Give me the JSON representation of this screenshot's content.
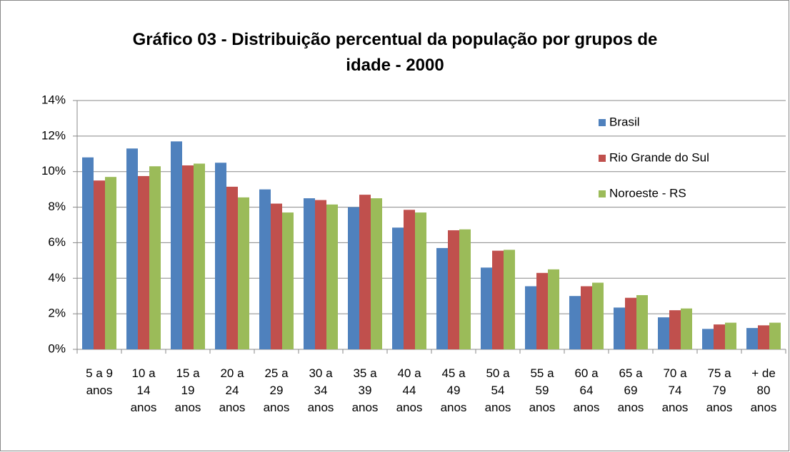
{
  "chart_data": {
    "type": "bar",
    "title": "Gráfico 03 - Distribuição percentual da população por grupos de idade - 2000",
    "categories": [
      "5 a 9 anos",
      "10 a 14 anos",
      "15 a 19 anos",
      "20 a 24 anos",
      "25 a 29 anos",
      "30 a 34 anos",
      "35 a 39 anos",
      "40 a 44 anos",
      "45 a 49 anos",
      "50 a 54 anos",
      "55 a 59 anos",
      "60 a 64 anos",
      "65 a 69 anos",
      "70 a 74 anos",
      "75 a 79 anos",
      "+ de 80 anos"
    ],
    "series": [
      {
        "name": "Brasil",
        "color": "#4f81bd",
        "values": [
          10.8,
          11.3,
          11.7,
          10.5,
          9.0,
          8.5,
          8.0,
          6.85,
          5.7,
          4.6,
          3.55,
          3.0,
          2.35,
          1.8,
          1.15,
          1.2
        ]
      },
      {
        "name": "Rio Grande do Sul",
        "color": "#c0504d",
        "values": [
          9.5,
          9.75,
          10.35,
          9.15,
          8.2,
          8.4,
          8.7,
          7.85,
          6.7,
          5.55,
          4.3,
          3.55,
          2.9,
          2.2,
          1.4,
          1.35
        ]
      },
      {
        "name": "Noroeste - RS",
        "color": "#9bbb59",
        "values": [
          9.7,
          10.3,
          10.45,
          8.55,
          7.7,
          8.15,
          8.5,
          7.7,
          6.75,
          5.6,
          4.5,
          3.75,
          3.05,
          2.3,
          1.5,
          1.5
        ]
      }
    ],
    "ylim": [
      0,
      14
    ],
    "yticks": [
      {
        "value": 0,
        "label": "0%"
      },
      {
        "value": 2,
        "label": "2%"
      },
      {
        "value": 4,
        "label": "4%"
      },
      {
        "value": 6,
        "label": "6%"
      },
      {
        "value": 8,
        "label": "8%"
      },
      {
        "value": 10,
        "label": "10%"
      },
      {
        "value": 12,
        "label": "12%"
      },
      {
        "value": 14,
        "label": "14%"
      }
    ],
    "grid": true,
    "legend": "upper right"
  }
}
